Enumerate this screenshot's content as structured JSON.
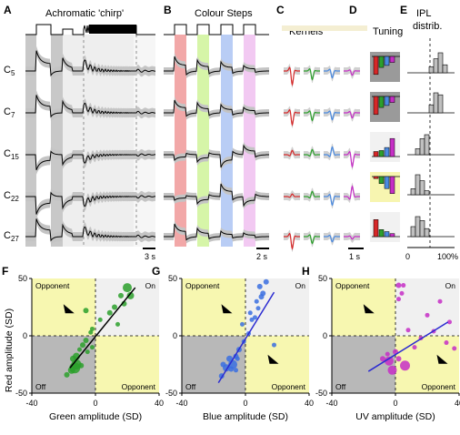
{
  "figure": {
    "panel_letters": [
      "A",
      "B",
      "C",
      "D",
      "E",
      "F",
      "G",
      "H"
    ],
    "panel_a": {
      "title": "Achromatic 'chirp'",
      "scale_label": "3 s"
    },
    "panel_b": {
      "title": "Colour Steps",
      "scale_label": "2 s",
      "step_colors": [
        "#f2a8a8",
        "#d6f5a8",
        "#b9cdf5",
        "#f2c9f2"
      ]
    },
    "panel_c": {
      "title": "Kernels",
      "scale_label": "1 s",
      "kernel_colors": [
        "#d62728",
        "#2ca02c",
        "#4a8ae0",
        "#c52ec5"
      ]
    },
    "panel_d": {
      "title": "Tuning"
    },
    "panel_e": {
      "title_line1": "IPL",
      "title_line2": "distrib.",
      "axis_min": "0",
      "axis_max": "100%"
    },
    "clusters": [
      {
        "prefix": "C",
        "sub": "5"
      },
      {
        "prefix": "C",
        "sub": "7"
      },
      {
        "prefix": "C",
        "sub": "15"
      },
      {
        "prefix": "C",
        "sub": "22"
      },
      {
        "prefix": "C",
        "sub": "27"
      }
    ],
    "tuning_bars": [
      [
        0.9,
        0.55,
        0.45,
        0.3
      ],
      [
        0.9,
        0.55,
        0.45,
        0.3
      ],
      [
        0.25,
        0.3,
        0.45,
        0.9
      ],
      [
        0.1,
        0.35,
        0.6,
        0.85
      ],
      [
        0.85,
        0.35,
        0.25,
        0.15
      ]
    ],
    "tuning_box_fill": [
      "#9a9a9a",
      "#9a9a9a",
      "#f1f1f1",
      "#f7f5b0",
      "#f1f1f1"
    ],
    "tuning_bar_sign": [
      -1,
      -1,
      1,
      -1,
      1
    ],
    "ipl_hist": [
      [
        0,
        0,
        0,
        0,
        0.3,
        0.7,
        1.0,
        0.4
      ],
      [
        0,
        0,
        0,
        0,
        0.4,
        1.0,
        0.9,
        0
      ],
      [
        0,
        0.3,
        0.8,
        1.0,
        0,
        0,
        0,
        0
      ],
      [
        0.3,
        1.0,
        0.7,
        0.2,
        0,
        0,
        0,
        0
      ],
      [
        0.5,
        1.0,
        0.8,
        0.4,
        0,
        0,
        0,
        0
      ]
    ]
  },
  "scatter_plots": {
    "quadrant_labels": {
      "opponent": "Opponent",
      "on": "On",
      "off": "Off"
    },
    "y_axis_label": "Red amplitude (SD)",
    "y_ticks": [
      "50",
      "0",
      "-50"
    ],
    "x_ticks": [
      "-40",
      "0",
      "40"
    ],
    "panels": [
      {
        "letter": "F",
        "xlabel": "Green amplitude (SD)",
        "color": "#2ca02c"
      },
      {
        "letter": "G",
        "xlabel": "Blue amplitude (SD)",
        "color": "#3a6fe0"
      },
      {
        "letter": "H",
        "xlabel": "UV amplitude (SD)",
        "color": "#c52ec5"
      }
    ]
  },
  "chart_data": [
    {
      "type": "scatter",
      "panel": "F",
      "title": "",
      "xlabel": "Green amplitude (SD)",
      "ylabel": "Red amplitude (SD)",
      "xlim": [
        -40,
        40
      ],
      "ylim": [
        -50,
        50
      ],
      "line_color": "#000000",
      "points": [
        [
          20,
          42
        ],
        [
          22,
          35
        ],
        [
          16,
          35
        ],
        [
          18,
          28
        ],
        [
          12,
          25
        ],
        [
          9,
          20
        ],
        [
          3,
          14
        ],
        [
          14,
          10
        ],
        [
          -2,
          6
        ],
        [
          -3,
          3
        ],
        [
          -6,
          -4
        ],
        [
          -8,
          -8
        ],
        [
          -10,
          -12
        ],
        [
          -5,
          -14
        ],
        [
          -12,
          -18
        ],
        [
          -14,
          -20
        ],
        [
          -12,
          -25
        ],
        [
          -13,
          -28
        ],
        [
          -15,
          -30
        ],
        [
          -9,
          -26
        ],
        [
          -6,
          22
        ],
        [
          -18,
          -34
        ],
        [
          -2,
          -10
        ]
      ],
      "sizes": [
        5,
        4,
        3,
        3,
        3,
        3,
        2.5,
        2.5,
        2.5,
        2.5,
        3,
        3,
        2.5,
        2.5,
        4,
        3.5,
        5.5,
        6,
        4,
        3,
        3,
        3,
        2.5
      ],
      "fit_line": [
        [
          -16,
          -28
        ],
        [
          25,
          42
        ]
      ]
    },
    {
      "type": "scatter",
      "panel": "G",
      "title": "",
      "xlabel": "Blue amplitude (SD)",
      "ylabel": "Red amplitude (SD)",
      "xlim": [
        -40,
        40
      ],
      "ylim": [
        -50,
        50
      ],
      "line_color": "#2b2bd1",
      "points": [
        [
          13,
          47
        ],
        [
          9,
          43
        ],
        [
          11,
          37
        ],
        [
          10,
          34
        ],
        [
          7,
          30
        ],
        [
          4,
          14
        ],
        [
          3,
          20
        ],
        [
          6,
          16
        ],
        [
          2,
          2
        ],
        [
          -1,
          -5
        ],
        [
          -4,
          -12
        ],
        [
          -6,
          -18
        ],
        [
          -10,
          -20
        ],
        [
          -8,
          -25
        ],
        [
          -12,
          -28
        ],
        [
          -15,
          -35
        ],
        [
          -14,
          -25
        ],
        [
          -9,
          -29
        ],
        [
          -5,
          -20
        ],
        [
          8,
          24
        ],
        [
          -2,
          10
        ],
        [
          18,
          -8
        ],
        [
          -6,
          -30
        ]
      ],
      "sizes": [
        3,
        3,
        3,
        3,
        2.5,
        2.5,
        2.5,
        2.5,
        2.5,
        2.5,
        3,
        3,
        3.5,
        5,
        4,
        3,
        3,
        3,
        2.5,
        2.5,
        2.5,
        2.5,
        2.5
      ],
      "fit_line": [
        [
          -17,
          -41
        ],
        [
          18,
          38
        ]
      ]
    },
    {
      "type": "scatter",
      "panel": "H",
      "title": "",
      "xlabel": "UV amplitude (SD)",
      "ylabel": "Red amplitude (SD)",
      "xlim": [
        -40,
        40
      ],
      "ylim": [
        -50,
        50
      ],
      "line_color": "#2b2bd1",
      "points": [
        [
          2,
          44
        ],
        [
          5,
          44
        ],
        [
          4,
          37
        ],
        [
          2,
          32
        ],
        [
          28,
          30
        ],
        [
          20,
          18
        ],
        [
          34,
          12
        ],
        [
          8,
          5
        ],
        [
          16,
          -2
        ],
        [
          32,
          -6
        ],
        [
          37,
          -11
        ],
        [
          -5,
          -16
        ],
        [
          2,
          -20
        ],
        [
          -4,
          -22
        ],
        [
          6,
          -26
        ],
        [
          -2,
          -30
        ],
        [
          -8,
          -20
        ],
        [
          12,
          -10
        ],
        [
          24,
          4
        ],
        [
          0,
          -14
        ]
      ],
      "sizes": [
        3,
        2.5,
        2.5,
        2.5,
        2.5,
        2.5,
        2.5,
        2.5,
        2.5,
        2.5,
        2.5,
        2.5,
        3,
        5,
        5.5,
        5,
        3,
        2.5,
        2.5,
        3
      ],
      "fit_line": [
        [
          -17,
          -31
        ],
        [
          33,
          12
        ]
      ]
    }
  ]
}
